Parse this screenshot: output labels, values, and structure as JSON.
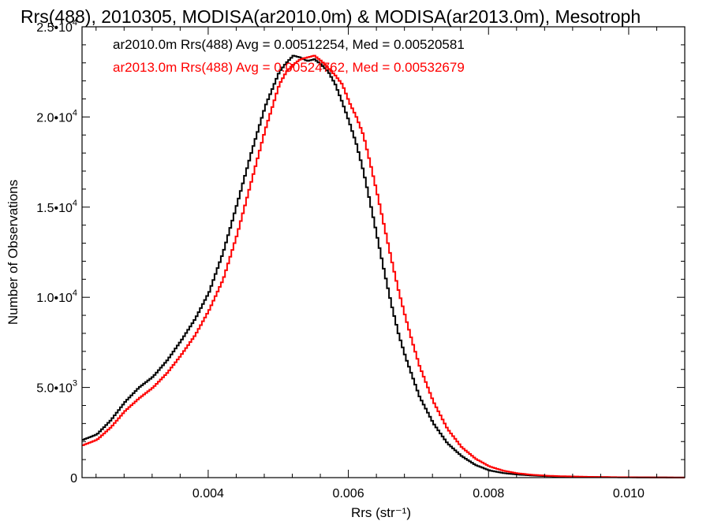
{
  "chart_data": {
    "type": "line",
    "title": "Rrs(488), 2010305, MODISA(ar2010.0m) & MODISA(ar2013.0m), Mesotroph",
    "xlabel": "Rrs (str⁻¹)",
    "ylabel": "Number of Observations",
    "xlim": [
      0.0022,
      0.0108
    ],
    "ylim": [
      0,
      25000
    ],
    "x_ticks": [
      {
        "value": 0.004,
        "label": "0.004"
      },
      {
        "value": 0.006,
        "label": "0.006"
      },
      {
        "value": 0.008,
        "label": "0.008"
      },
      {
        "value": 0.01,
        "label": "0.010"
      }
    ],
    "y_ticks": [
      {
        "value": 0,
        "label": "0"
      },
      {
        "value": 5000,
        "label": "5.0•10",
        "exp": "3"
      },
      {
        "value": 10000,
        "label": "1.0•10",
        "exp": "4"
      },
      {
        "value": 15000,
        "label": "1.5•10",
        "exp": "4"
      },
      {
        "value": 20000,
        "label": "2.0•10",
        "exp": "4"
      },
      {
        "value": 25000,
        "label": "2.5•10",
        "exp": "4"
      }
    ],
    "grid": false,
    "legend_position": "top-left",
    "series": [
      {
        "name": "ar2010.0m Rrs(488) Avg = 0.00512254, Med = 0.00520581",
        "color": "#000000",
        "x": [
          0.0022,
          0.0024,
          0.0026,
          0.0028,
          0.003,
          0.0032,
          0.0034,
          0.0036,
          0.0038,
          0.004,
          0.0042,
          0.0044,
          0.0046,
          0.0048,
          0.005,
          0.0051,
          0.0052,
          0.0053,
          0.0054,
          0.0055,
          0.0056,
          0.0057,
          0.0058,
          0.0059,
          0.006,
          0.0061,
          0.0062,
          0.0063,
          0.0064,
          0.0065,
          0.0066,
          0.0067,
          0.0068,
          0.007,
          0.0072,
          0.0074,
          0.0076,
          0.0078,
          0.008,
          0.0082,
          0.0084,
          0.0086,
          0.0088,
          0.009,
          0.0094,
          0.0098,
          0.0102,
          0.0108
        ],
        "y": [
          2100,
          2400,
          3200,
          4200,
          5000,
          5600,
          6500,
          7600,
          8800,
          10300,
          12500,
          15200,
          18000,
          20600,
          22500,
          23000,
          23400,
          23300,
          23100,
          23200,
          22900,
          22500,
          21800,
          20800,
          19700,
          18500,
          17000,
          15200,
          13300,
          11400,
          9600,
          8000,
          6700,
          4500,
          3000,
          1900,
          1200,
          700,
          400,
          250,
          170,
          120,
          80,
          60,
          35,
          20,
          12,
          5
        ]
      },
      {
        "name": "ar2013.0m Rrs(488) Avg = 0.00524762, Med = 0.00532679",
        "color": "#ff0000",
        "x": [
          0.0022,
          0.0024,
          0.0026,
          0.0028,
          0.003,
          0.0032,
          0.0034,
          0.0036,
          0.0038,
          0.004,
          0.0042,
          0.0044,
          0.0046,
          0.0048,
          0.005,
          0.0051,
          0.0052,
          0.0053,
          0.0054,
          0.0055,
          0.0056,
          0.0057,
          0.0058,
          0.0059,
          0.006,
          0.0061,
          0.0062,
          0.0063,
          0.0064,
          0.0065,
          0.0066,
          0.0067,
          0.0068,
          0.0069,
          0.007,
          0.0072,
          0.0074,
          0.0076,
          0.0078,
          0.008,
          0.0082,
          0.0084,
          0.0086,
          0.0088,
          0.009,
          0.0094,
          0.0098,
          0.0102,
          0.0108
        ],
        "y": [
          1800,
          2100,
          2800,
          3700,
          4400,
          5000,
          5800,
          6800,
          7900,
          9300,
          11000,
          13500,
          16400,
          19300,
          21800,
          22500,
          22900,
          23200,
          23300,
          23400,
          23100,
          22700,
          22300,
          21800,
          20800,
          20000,
          19000,
          17400,
          15700,
          13900,
          12100,
          10400,
          8900,
          7500,
          6200,
          4200,
          2700,
          1700,
          1050,
          620,
          380,
          240,
          160,
          110,
          80,
          45,
          25,
          15,
          5
        ]
      }
    ]
  }
}
